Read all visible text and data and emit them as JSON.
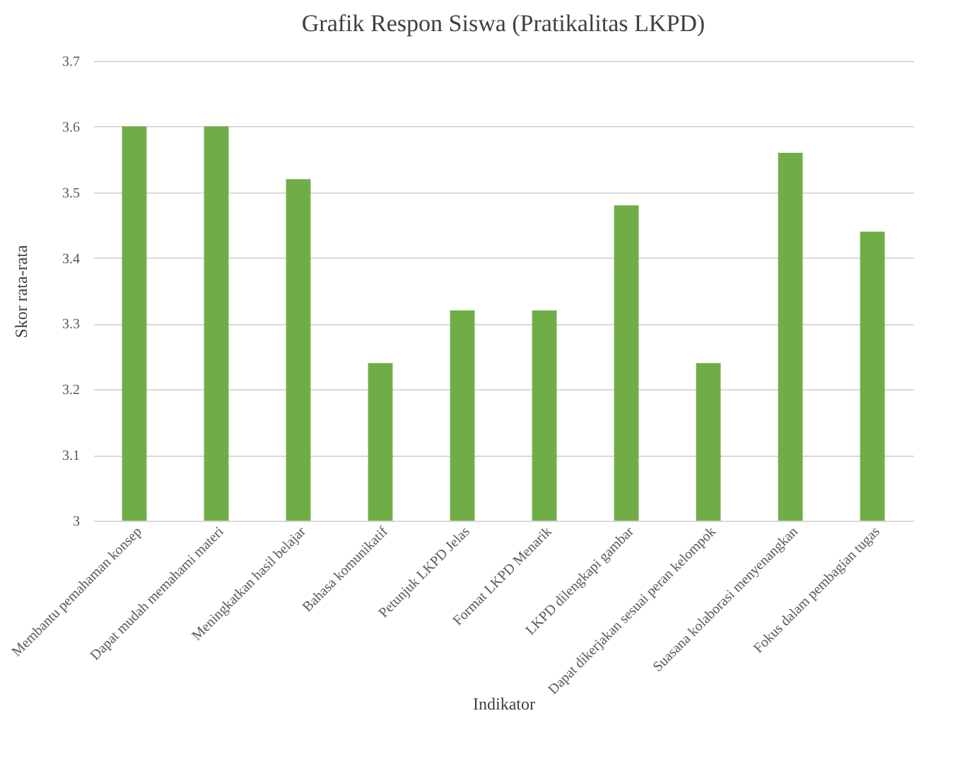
{
  "chart_data": {
    "type": "bar",
    "title": "Grafik Respon Siswa (Pratikalitas LKPD)",
    "xlabel": "Indikator",
    "ylabel": "Skor rata-rata",
    "categories": [
      "Membantu pemahaman konsep",
      "Dapat mudah memahami materi",
      "Meningkatkan hasil belajar",
      "Bahasa komunikatif",
      "Petunjuk LKPD Jelas",
      "Format LKPD Menarik",
      "LKPD dilengkapi gambar",
      "Dapat dikerjakan sesuai peran kelompok",
      "Suasana kolaborasi menyenangkan",
      "Fokus dalam pembagian tugas"
    ],
    "values": [
      3.6,
      3.6,
      3.52,
      3.24,
      3.32,
      3.32,
      3.48,
      3.24,
      3.56,
      3.44
    ],
    "color": "#70ad47",
    "ylim": [
      3,
      3.7
    ],
    "yticks": [
      3,
      3.1,
      3.2,
      3.3,
      3.4,
      3.5,
      3.6,
      3.7
    ],
    "grid": "y"
  }
}
